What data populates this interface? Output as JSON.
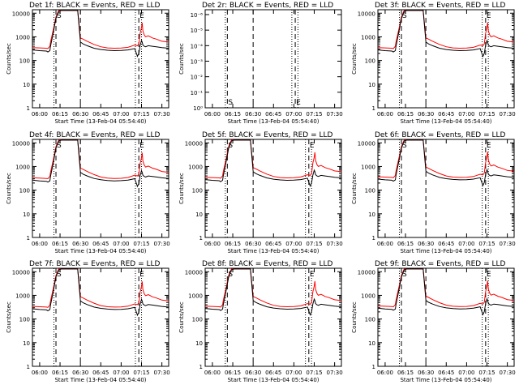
{
  "chart_data": {
    "type": "line",
    "title_suffix": "BLACK = Events, RED = LLD",
    "xlabel": "Start Time (13-Feb-04 05:54:40)",
    "ylabel": "Counts/sec",
    "x_ticks": [
      "06:00",
      "06:15",
      "06:30",
      "06:45",
      "07:00",
      "07:15",
      "07:30"
    ],
    "x_tick_minutes": [
      0,
      15,
      30,
      45,
      60,
      75,
      90
    ],
    "x_range_minutes": [
      -5.33,
      95
    ],
    "line_colors": {
      "events": "#000000",
      "lld": "#ff0000"
    },
    "log_y_ticks": [
      "1",
      "10",
      "100",
      "1000",
      "10000"
    ],
    "panels": [
      {
        "det": "Det 1f",
        "mode": "log",
        "markers": {
          "S": 12,
          "E": 73
        },
        "scale": 1.0
      },
      {
        "det": "Det 2r",
        "mode": "tiny",
        "markers": {
          "S": 11,
          "E": 61
        },
        "y_ticks": [
          "10⁰",
          "10⁻¹",
          "10⁻²",
          "10⁻³",
          "10⁻⁴",
          "10⁻⁵",
          "10⁻⁶"
        ]
      },
      {
        "det": "Det 3f",
        "mode": "log",
        "markers": {
          "S": 12,
          "E": 74
        },
        "scale": 1.0
      },
      {
        "det": "Det 4f",
        "mode": "log",
        "markers": {
          "S": 12,
          "E": 73
        },
        "scale": 0.95
      },
      {
        "det": "Det 5f",
        "mode": "log",
        "markers": {
          "S": 11,
          "E": 71
        },
        "scale": 1.0
      },
      {
        "det": "Det 6f",
        "mode": "log",
        "markers": {
          "S": 12,
          "E": 74
        },
        "scale": 1.05
      },
      {
        "det": "Det 7f",
        "mode": "log",
        "markers": {
          "S": 12,
          "E": 73
        },
        "scale": 0.97
      },
      {
        "det": "Det 8f",
        "mode": "log",
        "markers": {
          "S": 11,
          "E": 71
        },
        "scale": 1.0
      },
      {
        "det": "Det 9f",
        "mode": "log",
        "markers": {
          "S": 12,
          "E": 74
        },
        "scale": 1.02
      }
    ],
    "series_profile_minutes": {
      "t": [
        -5.3,
        0,
        5,
        6,
        7.5,
        8,
        10,
        12,
        14,
        16,
        18,
        20,
        25,
        28,
        30,
        32,
        35,
        40,
        45,
        50,
        55,
        60,
        65,
        70,
        72,
        73,
        74,
        75,
        75.5,
        76,
        77,
        78,
        80,
        83,
        86,
        90,
        95
      ],
      "events": [
        280,
        260,
        250,
        230,
        260,
        400,
        1500,
        6000,
        12000,
        13000,
        13000,
        13000,
        13000,
        13000,
        600,
        500,
        420,
        330,
        290,
        270,
        260,
        265,
        280,
        320,
        150,
        200,
        430,
        700,
        600,
        450,
        400,
        380,
        420,
        400,
        380,
        350,
        330
      ],
      "lld": [
        350,
        340,
        330,
        320,
        400,
        600,
        2000,
        7000,
        13000,
        13000,
        13000,
        13000,
        13000,
        13000,
        900,
        800,
        650,
        480,
        380,
        340,
        330,
        335,
        360,
        450,
        420,
        500,
        1400,
        2500,
        4000,
        1800,
        1200,
        1000,
        1100,
        900,
        800,
        650,
        600
      ]
    }
  }
}
